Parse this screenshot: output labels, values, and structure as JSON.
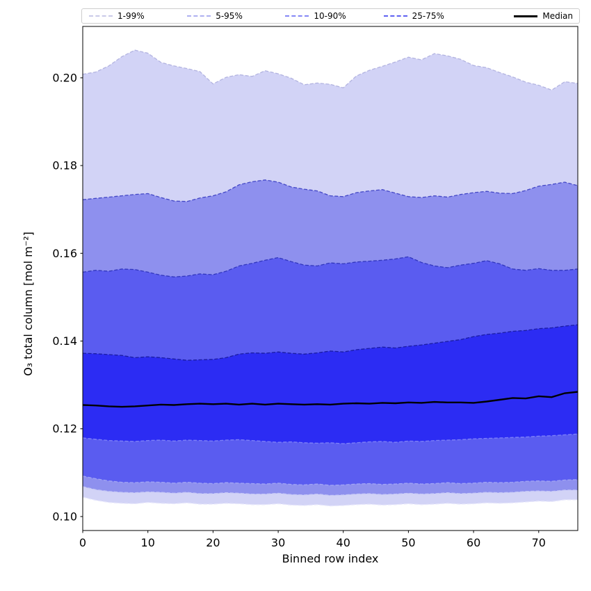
{
  "figure": {
    "legend": {
      "entries": [
        {
          "label": "1-99%",
          "color": "#c9cae8",
          "style": "dashed"
        },
        {
          "label": "5-95%",
          "color": "#aeb0f0",
          "style": "dashed"
        },
        {
          "label": "10-90%",
          "color": "#8487f6",
          "style": "dashed"
        },
        {
          "label": "25-75%",
          "color": "#5d60f2",
          "style": "dashed"
        },
        {
          "label": "Median",
          "color": "#000000",
          "style": "solid"
        }
      ]
    }
  },
  "chart_data": {
    "type": "area",
    "subtype": "percentile-fan-chart",
    "title": "",
    "xlabel": "Binned row index",
    "ylabel": "O₃ total column [mol m⁻²]",
    "xlim": [
      0,
      76
    ],
    "ylim": [
      0.0968,
      0.2117
    ],
    "grid": false,
    "legend_position": "top outside axes, 5 expanded columns",
    "xticks": [
      "0",
      "10",
      "20",
      "30",
      "40",
      "50",
      "60",
      "70"
    ],
    "xtick_values": [
      0,
      10,
      20,
      30,
      40,
      50,
      60,
      70
    ],
    "yticks": [
      "0.10",
      "0.12",
      "0.14",
      "0.16",
      "0.18",
      "0.20"
    ],
    "ytick_values": [
      0.1,
      0.12,
      0.14,
      0.16,
      0.18,
      0.2
    ],
    "x": [
      0,
      2,
      4,
      6,
      8,
      10,
      12,
      14,
      16,
      18,
      20,
      22,
      24,
      26,
      28,
      30,
      32,
      34,
      36,
      38,
      40,
      42,
      44,
      46,
      48,
      50,
      52,
      54,
      56,
      58,
      60,
      62,
      64,
      66,
      68,
      70,
      72,
      74,
      76
    ],
    "series": {
      "p1": [
        0.1044,
        0.1037,
        0.1032,
        0.103,
        0.1029,
        0.1032,
        0.103,
        0.1029,
        0.1031,
        0.1028,
        0.1028,
        0.103,
        0.1029,
        0.1027,
        0.1027,
        0.1029,
        0.1026,
        0.1025,
        0.1027,
        0.1024,
        0.1025,
        0.1027,
        0.1028,
        0.1026,
        0.1027,
        0.1029,
        0.1027,
        0.1028,
        0.103,
        0.1028,
        0.1029,
        0.1031,
        0.103,
        0.1031,
        0.1033,
        0.1035,
        0.1034,
        0.1038,
        0.1038
      ],
      "p5": [
        0.1068,
        0.1061,
        0.1057,
        0.1055,
        0.1054,
        0.1056,
        0.1055,
        0.1053,
        0.1055,
        0.1052,
        0.1052,
        0.1054,
        0.1053,
        0.1051,
        0.1051,
        0.1053,
        0.105,
        0.1049,
        0.1051,
        0.1048,
        0.1049,
        0.1051,
        0.1052,
        0.105,
        0.1051,
        0.1053,
        0.1051,
        0.1052,
        0.1054,
        0.1052,
        0.1053,
        0.1055,
        0.1054,
        0.1055,
        0.1057,
        0.1058,
        0.1057,
        0.106,
        0.106
      ],
      "p10": [
        0.1092,
        0.1086,
        0.1081,
        0.1078,
        0.1077,
        0.1079,
        0.1078,
        0.1076,
        0.1078,
        0.1076,
        0.1075,
        0.1077,
        0.1076,
        0.1075,
        0.1074,
        0.1076,
        0.1073,
        0.1072,
        0.1074,
        0.1071,
        0.1072,
        0.1074,
        0.1075,
        0.1073,
        0.1074,
        0.1076,
        0.1074,
        0.1075,
        0.1077,
        0.1075,
        0.1076,
        0.1078,
        0.1077,
        0.1078,
        0.108,
        0.1081,
        0.108,
        0.1083,
        0.1084
      ],
      "p25": [
        0.1179,
        0.1176,
        0.1173,
        0.1172,
        0.1171,
        0.1173,
        0.1174,
        0.1172,
        0.1174,
        0.1173,
        0.1172,
        0.1174,
        0.1175,
        0.1173,
        0.1171,
        0.1169,
        0.117,
        0.1168,
        0.1167,
        0.1168,
        0.1166,
        0.1168,
        0.117,
        0.1171,
        0.1169,
        0.1172,
        0.1171,
        0.1173,
        0.1174,
        0.1175,
        0.1177,
        0.1178,
        0.1179,
        0.118,
        0.1181,
        0.1183,
        0.1184,
        0.1186,
        0.1188
      ],
      "median": [
        0.1254,
        0.1253,
        0.1251,
        0.125,
        0.1251,
        0.1253,
        0.1255,
        0.1254,
        0.1256,
        0.1257,
        0.1256,
        0.1257,
        0.1255,
        0.1257,
        0.1255,
        0.1257,
        0.1256,
        0.1255,
        0.1256,
        0.1255,
        0.1257,
        0.1258,
        0.1257,
        0.1259,
        0.1258,
        0.126,
        0.1259,
        0.1261,
        0.126,
        0.126,
        0.1259,
        0.1262,
        0.1266,
        0.127,
        0.1269,
        0.1274,
        0.1272,
        0.1281,
        0.1284
      ],
      "p75": [
        0.1372,
        0.1371,
        0.1369,
        0.1367,
        0.1362,
        0.1364,
        0.1362,
        0.1359,
        0.1356,
        0.1357,
        0.1358,
        0.1362,
        0.137,
        0.1373,
        0.1372,
        0.1375,
        0.1372,
        0.137,
        0.1373,
        0.1377,
        0.1375,
        0.138,
        0.1383,
        0.1386,
        0.1384,
        0.1388,
        0.1391,
        0.1395,
        0.1399,
        0.1403,
        0.141,
        0.1415,
        0.1418,
        0.1422,
        0.1424,
        0.1428,
        0.143,
        0.1434,
        0.1437
      ],
      "p90": [
        0.1557,
        0.1561,
        0.1559,
        0.1564,
        0.1563,
        0.1557,
        0.155,
        0.1546,
        0.1548,
        0.1553,
        0.1551,
        0.1559,
        0.1571,
        0.1577,
        0.1584,
        0.159,
        0.1581,
        0.1573,
        0.1571,
        0.1578,
        0.1576,
        0.158,
        0.1582,
        0.1584,
        0.1587,
        0.1592,
        0.1579,
        0.1571,
        0.1567,
        0.1573,
        0.1577,
        0.1583,
        0.1576,
        0.1564,
        0.1561,
        0.1565,
        0.1561,
        0.1561,
        0.1564
      ],
      "p95": [
        0.1722,
        0.1725,
        0.1728,
        0.1731,
        0.1734,
        0.1736,
        0.1727,
        0.1719,
        0.1718,
        0.1726,
        0.1731,
        0.174,
        0.1756,
        0.1763,
        0.1767,
        0.1762,
        0.1751,
        0.1746,
        0.1742,
        0.1731,
        0.1729,
        0.1738,
        0.1742,
        0.1745,
        0.1737,
        0.1729,
        0.1727,
        0.1731,
        0.1728,
        0.1734,
        0.1738,
        0.1741,
        0.1737,
        0.1736,
        0.1743,
        0.1753,
        0.1757,
        0.1762,
        0.1754
      ],
      "p99": [
        0.2008,
        0.2013,
        0.2027,
        0.2048,
        0.2063,
        0.2056,
        0.2035,
        0.2027,
        0.2021,
        0.2014,
        0.1986,
        0.2001,
        0.2007,
        0.2003,
        0.2016,
        0.2009,
        0.1999,
        0.1984,
        0.1988,
        0.1985,
        0.1977,
        0.2004,
        0.2017,
        0.2026,
        0.2036,
        0.2047,
        0.2041,
        0.2055,
        0.205,
        0.2042,
        0.2028,
        0.2023,
        0.2012,
        0.2002,
        0.199,
        0.1983,
        0.1972,
        0.1991,
        0.1987
      ]
    },
    "bands": [
      {
        "label": "1-99%",
        "lower": "p1",
        "upper": "p99",
        "fill": "#d2d3f6",
        "upper_edge": "#b2b3e0",
        "lower_edge": "#e6e6fb"
      },
      {
        "label": "5-95%",
        "lower": "p5",
        "upper": "p95",
        "fill": "#8e90ee",
        "upper_edge": "#4347c6",
        "lower_edge": "#c6c8f6"
      },
      {
        "label": "10-90%",
        "lower": "p10",
        "upper": "p90",
        "fill": "#5a5cf0",
        "upper_edge": "#3136bd",
        "lower_edge": "#a2a5f4"
      },
      {
        "label": "25-75%",
        "lower": "p25",
        "upper": "p75",
        "fill": "#2c2cf3",
        "upper_edge": "#1a1ca2",
        "lower_edge": "#7f82f8"
      }
    ],
    "median_color": "#000000"
  }
}
